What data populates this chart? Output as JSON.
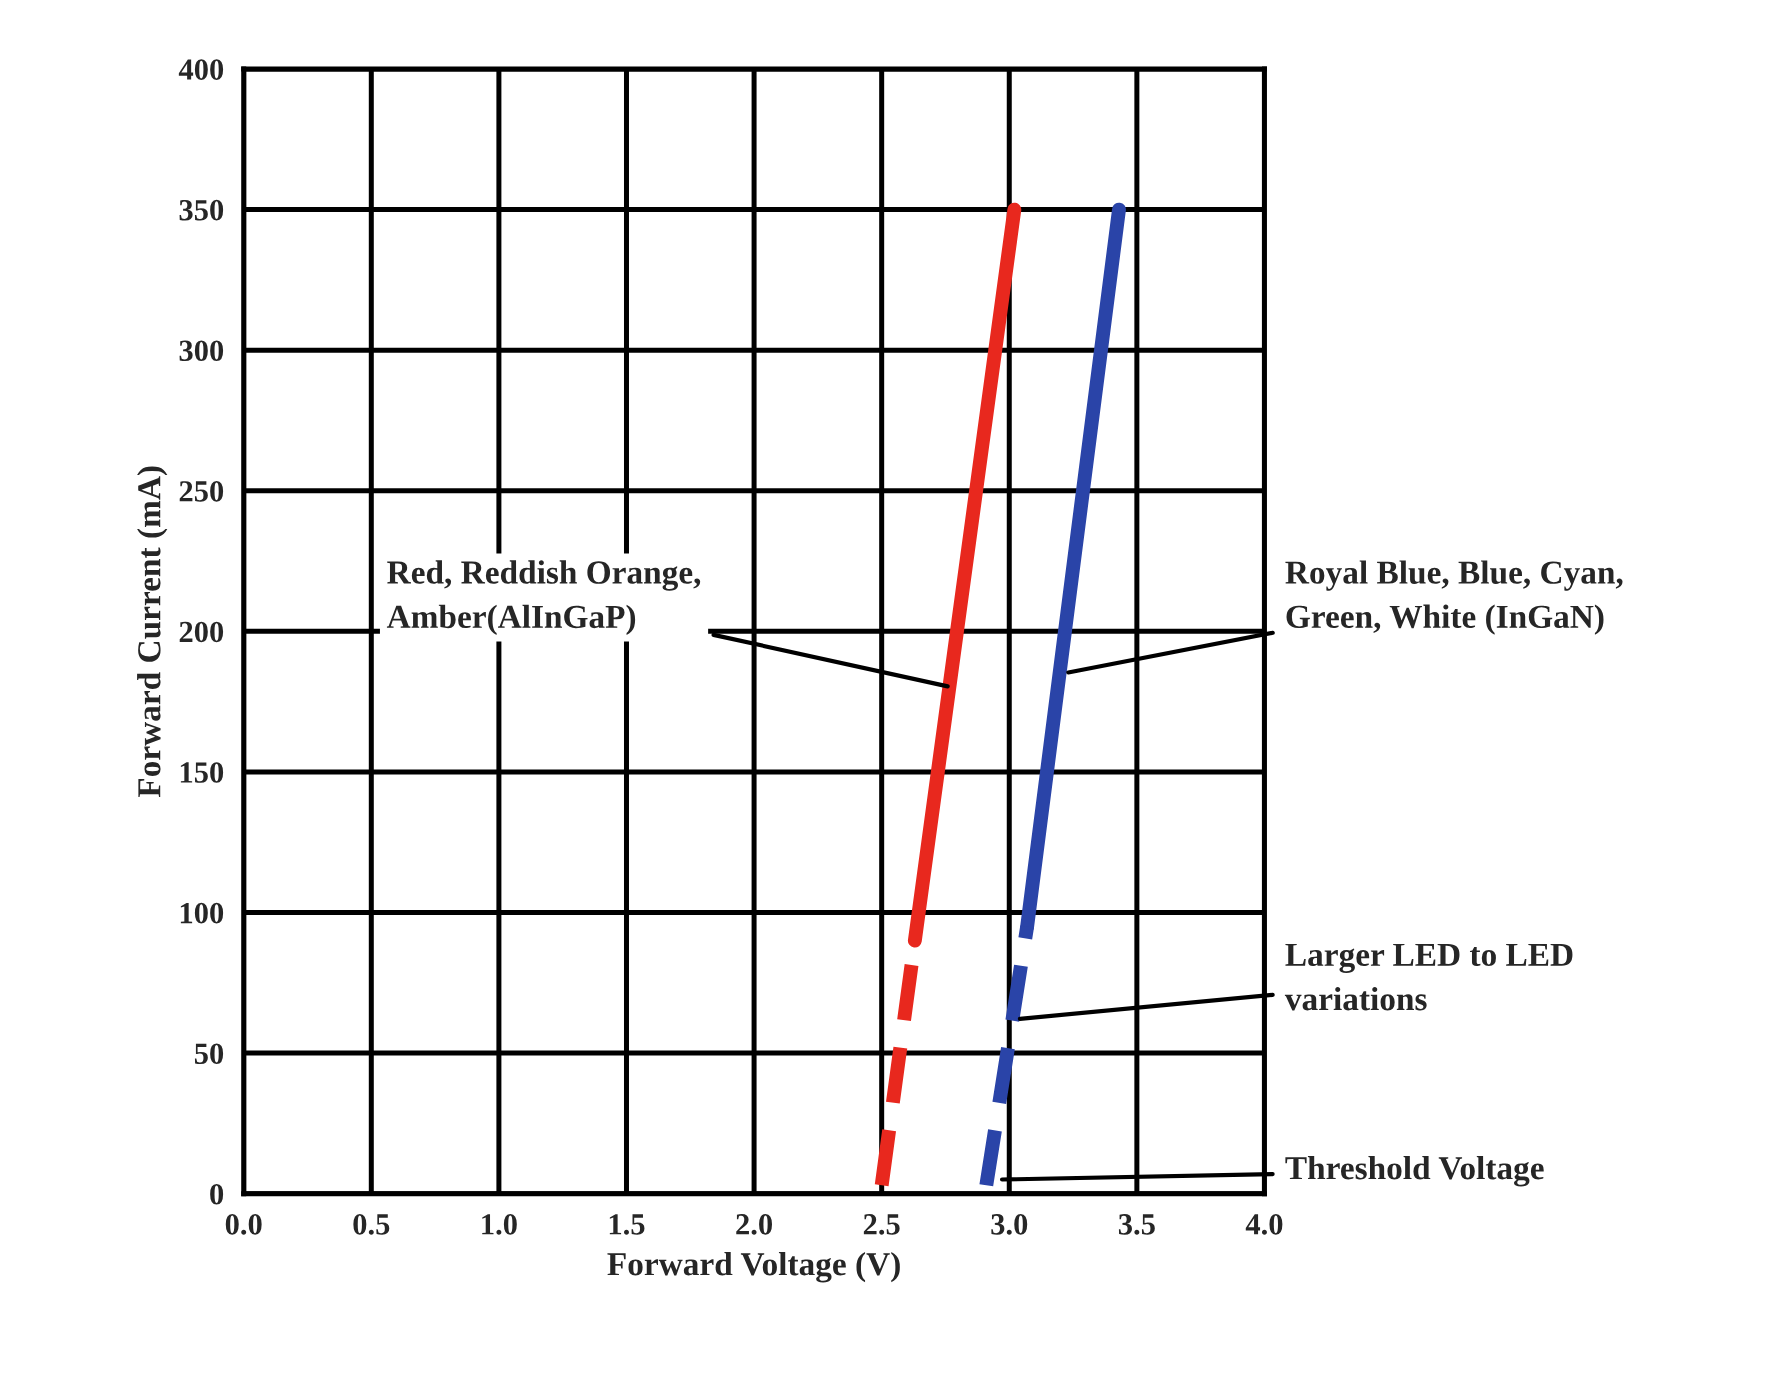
{
  "chart_data": {
    "type": "line",
    "xlabel": "Forward Voltage (V)",
    "ylabel": "Forward Current (mA)",
    "xlim": [
      0,
      4
    ],
    "xticks": [
      {
        "value": 0,
        "label": "0.0"
      },
      {
        "value": 0.5,
        "label": "0.5"
      },
      {
        "value": 1,
        "label": "1.0"
      },
      {
        "value": 1.5,
        "label": "1.5"
      },
      {
        "value": 2,
        "label": "2.0"
      },
      {
        "value": 2.5,
        "label": "2.5"
      },
      {
        "value": 3,
        "label": "3.0"
      },
      {
        "value": 3.5,
        "label": "3.5"
      },
      {
        "value": 4,
        "label": "4.0"
      }
    ],
    "ylim": [
      0,
      400
    ],
    "yticks": [
      0,
      50,
      100,
      150,
      200,
      250,
      300,
      350,
      400
    ],
    "grid": true,
    "marker": "none",
    "series": [
      {
        "color": "#e8281e",
        "line_style": "solid",
        "x": [
          2.63,
          3.02
        ],
        "values": [
          90,
          350
        ]
      },
      {
        "color": "#e8281e",
        "line_style": "dashed",
        "x": [
          2.5,
          2.63
        ],
        "values": [
          3,
          90
        ]
      },
      {
        "color": "#2a44a8",
        "line_style": "solid",
        "x": [
          3.07,
          3.43
        ],
        "values": [
          95,
          350
        ]
      },
      {
        "color": "#2a44a8",
        "line_style": "dashed",
        "x": [
          2.91,
          3.07
        ],
        "values": [
          3,
          95
        ]
      }
    ],
    "annotations": [
      {
        "text": "Red, Reddish Orange,\nAmber(AlInGaP)",
        "x": 2.78,
        "y": 180
      },
      {
        "text": "Royal Blue, Blue, Cyan,\nGreen, White (InGaN)",
        "x": 3.21,
        "y": 185
      },
      {
        "text": "Larger LED to LED\nvariations",
        "x": 3.02,
        "y": 62
      },
      {
        "text": "Threshold Voltage",
        "x": 2.95,
        "y": 5
      }
    ]
  }
}
